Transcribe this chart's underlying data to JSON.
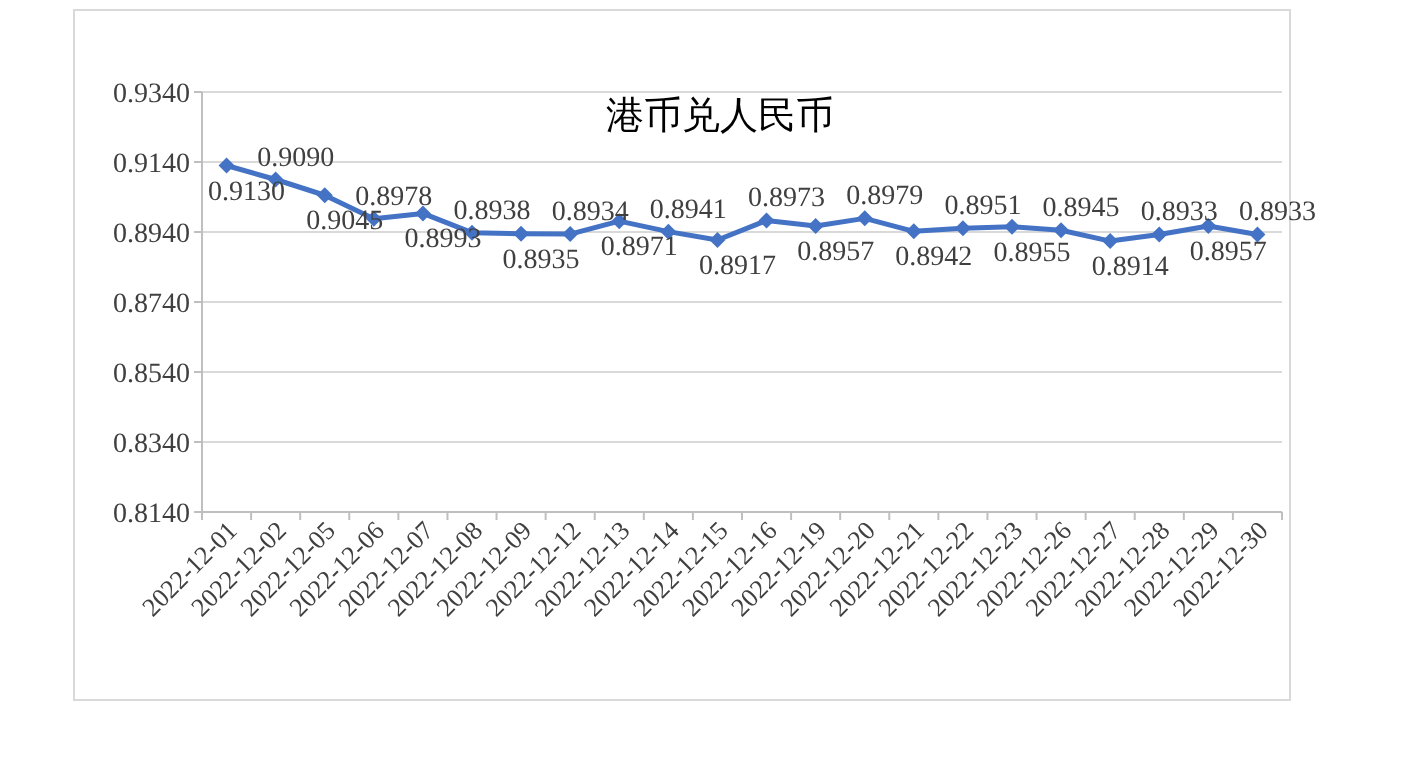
{
  "chart_data": {
    "type": "line",
    "title": "港币兑人民币",
    "categories": [
      "2022-12-01",
      "2022-12-02",
      "2022-12-05",
      "2022-12-06",
      "2022-12-07",
      "2022-12-08",
      "2022-12-09",
      "2022-12-12",
      "2022-12-13",
      "2022-12-14",
      "2022-12-15",
      "2022-12-16",
      "2022-12-19",
      "2022-12-20",
      "2022-12-21",
      "2022-12-22",
      "2022-12-23",
      "2022-12-26",
      "2022-12-27",
      "2022-12-28",
      "2022-12-29",
      "2022-12-30"
    ],
    "series": [
      {
        "color": "#4472c4",
        "values": [
          0.913,
          0.909,
          0.9045,
          0.8978,
          0.8993,
          0.8938,
          0.8935,
          0.8934,
          0.8971,
          0.8941,
          0.8917,
          0.8973,
          0.8957,
          0.8979,
          0.8942,
          0.8951,
          0.8955,
          0.8945,
          0.8914,
          0.8933,
          0.8957,
          0.8933
        ],
        "value_labels": [
          "0.9130",
          "0.9090",
          "0.9045",
          "0.8978",
          "0.8993",
          "0.8938",
          "0.8935",
          "0.8934",
          "0.8971",
          "0.8941",
          "0.8917",
          "0.8973",
          "0.8957",
          "0.8979",
          "0.8942",
          "0.8951",
          "0.8955",
          "0.8945",
          "0.8914",
          "0.8933",
          "0.8957",
          "0.8933"
        ]
      }
    ],
    "ylim": [
      0.814,
      0.934
    ],
    "yticks": [
      {
        "value": 0.814,
        "label": "0.8140"
      },
      {
        "value": 0.834,
        "label": "0.8340"
      },
      {
        "value": 0.854,
        "label": "0.8540"
      },
      {
        "value": 0.874,
        "label": "0.8740"
      },
      {
        "value": 0.894,
        "label": "0.8940"
      },
      {
        "value": 0.914,
        "label": "0.9140"
      },
      {
        "value": 0.934,
        "label": "0.9340"
      }
    ],
    "grid": "y",
    "marker": "diamond",
    "line_style": "solid"
  }
}
